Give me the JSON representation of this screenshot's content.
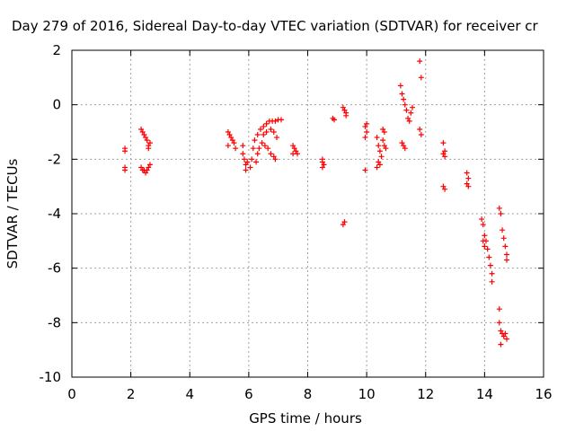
{
  "chart_data": {
    "type": "scatter",
    "title": "Day 279 of 2016, Sidereal Day-to-day VTEC variation (SDTVAR) for receiver cr",
    "xlabel": "GPS time / hours",
    "ylabel": "SDTVAR / TECUs",
    "xlim": [
      0,
      16
    ],
    "ylim": [
      -10,
      2
    ],
    "xticks": [
      0,
      2,
      4,
      6,
      8,
      10,
      12,
      14,
      16
    ],
    "yticks": [
      -10,
      -8,
      -6,
      -4,
      -2,
      0,
      2
    ],
    "grid": true,
    "marker": "+",
    "color": "#ff0000",
    "points": [
      [
        1.8,
        -1.6
      ],
      [
        1.8,
        -1.7
      ],
      [
        1.8,
        -2.3
      ],
      [
        1.8,
        -2.4
      ],
      [
        2.35,
        -0.9
      ],
      [
        2.4,
        -1.0
      ],
      [
        2.45,
        -1.1
      ],
      [
        2.5,
        -1.2
      ],
      [
        2.55,
        -1.3
      ],
      [
        2.6,
        -1.5
      ],
      [
        2.6,
        -1.6
      ],
      [
        2.65,
        -1.4
      ],
      [
        2.35,
        -2.3
      ],
      [
        2.4,
        -2.4
      ],
      [
        2.45,
        -2.4
      ],
      [
        2.5,
        -2.5
      ],
      [
        2.55,
        -2.4
      ],
      [
        2.6,
        -2.3
      ],
      [
        2.65,
        -2.2
      ],
      [
        5.3,
        -1.0
      ],
      [
        5.35,
        -1.1
      ],
      [
        5.4,
        -1.2
      ],
      [
        5.45,
        -1.3
      ],
      [
        5.5,
        -1.4
      ],
      [
        5.55,
        -1.6
      ],
      [
        5.3,
        -1.5
      ],
      [
        5.8,
        -1.5
      ],
      [
        5.8,
        -1.8
      ],
      [
        5.85,
        -2.0
      ],
      [
        5.9,
        -2.2
      ],
      [
        5.9,
        -2.4
      ],
      [
        5.95,
        -2.1
      ],
      [
        6.05,
        -2.3
      ],
      [
        6.1,
        -2.0
      ],
      [
        6.15,
        -1.6
      ],
      [
        6.2,
        -1.3
      ],
      [
        6.3,
        -1.1
      ],
      [
        6.4,
        -0.9
      ],
      [
        6.5,
        -0.8
      ],
      [
        6.6,
        -0.7
      ],
      [
        6.7,
        -0.6
      ],
      [
        6.8,
        -0.6
      ],
      [
        6.9,
        -0.6
      ],
      [
        7.0,
        -0.55
      ],
      [
        7.1,
        -0.55
      ],
      [
        6.25,
        -2.1
      ],
      [
        6.3,
        -1.8
      ],
      [
        6.35,
        -1.6
      ],
      [
        6.45,
        -1.4
      ],
      [
        6.55,
        -1.5
      ],
      [
        6.65,
        -1.6
      ],
      [
        6.75,
        -1.8
      ],
      [
        6.85,
        -1.9
      ],
      [
        6.9,
        -2.0
      ],
      [
        6.5,
        -1.1
      ],
      [
        6.6,
        -1.0
      ],
      [
        6.75,
        -0.9
      ],
      [
        6.85,
        -1.0
      ],
      [
        6.95,
        -1.2
      ],
      [
        7.5,
        -1.5
      ],
      [
        7.55,
        -1.6
      ],
      [
        7.6,
        -1.7
      ],
      [
        7.65,
        -1.8
      ],
      [
        7.5,
        -1.8
      ],
      [
        8.5,
        -2.0
      ],
      [
        8.5,
        -2.1
      ],
      [
        8.55,
        -2.2
      ],
      [
        8.5,
        -2.3
      ],
      [
        8.85,
        -0.5
      ],
      [
        8.9,
        -0.55
      ],
      [
        9.2,
        -0.1
      ],
      [
        9.25,
        -0.2
      ],
      [
        9.3,
        -0.3
      ],
      [
        9.3,
        -0.4
      ],
      [
        9.25,
        -4.3
      ],
      [
        9.2,
        -4.4
      ],
      [
        9.95,
        -0.8
      ],
      [
        10.0,
        -0.7
      ],
      [
        10.0,
        -1.0
      ],
      [
        9.95,
        -1.2
      ],
      [
        9.95,
        -2.4
      ],
      [
        10.35,
        -1.2
      ],
      [
        10.4,
        -1.5
      ],
      [
        10.45,
        -1.7
      ],
      [
        10.5,
        -1.9
      ],
      [
        10.4,
        -2.1
      ],
      [
        10.45,
        -2.2
      ],
      [
        10.35,
        -2.3
      ],
      [
        10.55,
        -1.3
      ],
      [
        10.6,
        -1.5
      ],
      [
        10.65,
        -1.6
      ],
      [
        10.55,
        -0.9
      ],
      [
        10.6,
        -1.0
      ],
      [
        11.15,
        0.7
      ],
      [
        11.2,
        0.4
      ],
      [
        11.25,
        0.2
      ],
      [
        11.3,
        0.0
      ],
      [
        11.35,
        -0.2
      ],
      [
        11.4,
        -0.5
      ],
      [
        11.45,
        -0.6
      ],
      [
        11.5,
        -0.3
      ],
      [
        11.55,
        -0.1
      ],
      [
        11.2,
        -1.4
      ],
      [
        11.25,
        -1.5
      ],
      [
        11.3,
        -1.6
      ],
      [
        11.8,
        1.6
      ],
      [
        11.85,
        1.0
      ],
      [
        11.8,
        -0.9
      ],
      [
        11.85,
        -1.1
      ],
      [
        12.6,
        -1.4
      ],
      [
        12.65,
        -1.7
      ],
      [
        12.6,
        -1.8
      ],
      [
        12.65,
        -1.9
      ],
      [
        12.6,
        -3.0
      ],
      [
        12.65,
        -3.1
      ],
      [
        13.4,
        -2.5
      ],
      [
        13.45,
        -2.7
      ],
      [
        13.4,
        -2.9
      ],
      [
        13.45,
        -3.0
      ],
      [
        13.9,
        -4.2
      ],
      [
        13.95,
        -4.4
      ],
      [
        14.0,
        -4.8
      ],
      [
        14.05,
        -5.0
      ],
      [
        14.1,
        -5.3
      ],
      [
        14.15,
        -5.6
      ],
      [
        14.2,
        -5.9
      ],
      [
        14.25,
        -6.2
      ],
      [
        14.25,
        -6.5
      ],
      [
        13.95,
        -5.0
      ],
      [
        14.0,
        -5.2
      ],
      [
        14.5,
        -3.8
      ],
      [
        14.55,
        -4.0
      ],
      [
        14.6,
        -4.6
      ],
      [
        14.65,
        -4.9
      ],
      [
        14.7,
        -5.2
      ],
      [
        14.75,
        -5.5
      ],
      [
        14.75,
        -5.7
      ],
      [
        14.5,
        -7.5
      ],
      [
        14.5,
        -8.0
      ],
      [
        14.55,
        -8.3
      ],
      [
        14.6,
        -8.4
      ],
      [
        14.65,
        -8.5
      ],
      [
        14.7,
        -8.4
      ],
      [
        14.75,
        -8.6
      ],
      [
        14.55,
        -8.8
      ]
    ]
  }
}
